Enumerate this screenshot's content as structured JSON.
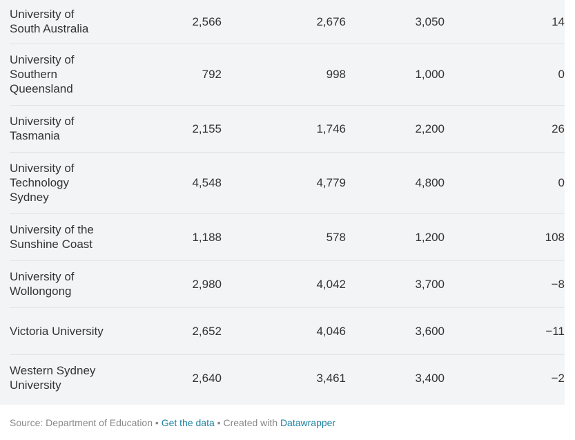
{
  "rows": [
    {
      "name": "University of South Australia",
      "v1": "2,566",
      "v2": "2,676",
      "v3": "3,050",
      "v4": "14"
    },
    {
      "name": "University of Southern Queensland",
      "v1": "792",
      "v2": "998",
      "v3": "1,000",
      "v4": "0"
    },
    {
      "name": "University of Tasmania",
      "v1": "2,155",
      "v2": "1,746",
      "v3": "2,200",
      "v4": "26"
    },
    {
      "name": "University of Technology Sydney",
      "v1": "4,548",
      "v2": "4,779",
      "v3": "4,800",
      "v4": "0"
    },
    {
      "name": "University of the Sunshine Coast",
      "v1": "1,188",
      "v2": "578",
      "v3": "1,200",
      "v4": "108"
    },
    {
      "name": "University of Wollongong",
      "v1": "2,980",
      "v2": "4,042",
      "v3": "3,700",
      "v4": "−8"
    },
    {
      "name": "Victoria University",
      "v1": "2,652",
      "v2": "4,046",
      "v3": "3,600",
      "v4": "−11"
    },
    {
      "name": "Western Sydney University",
      "v1": "2,640",
      "v2": "3,461",
      "v3": "3,400",
      "v4": "−2"
    }
  ],
  "footer": {
    "source": "Source: Department of Education",
    "separator": " • ",
    "get_data": "Get the data",
    "created_with": "Created with",
    "tool": "Datawrapper"
  },
  "colors": {
    "panel_bg": "#f3f4f6",
    "text": "#333333",
    "footer_text": "#888888",
    "link": "#1d81a2"
  }
}
